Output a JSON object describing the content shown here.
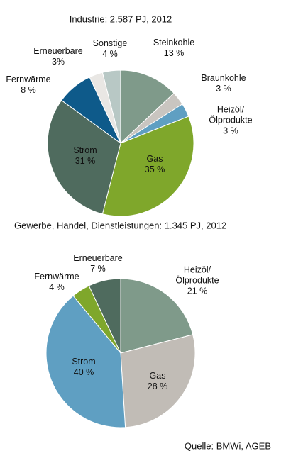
{
  "chart_data": [
    {
      "type": "pie",
      "title": "Industrie: 2.587 PJ, 2012",
      "categories": [
        "Steinkohle",
        "Braunkohle",
        "Heizöl/\nÖlprodukte",
        "Gas",
        "Strom",
        "Fernwärme",
        "Erneuerbare",
        "Sonstige"
      ],
      "values": [
        13,
        3,
        3,
        35,
        31,
        8,
        3,
        4
      ],
      "value_labels": [
        "13 %",
        "3 %",
        "3 %",
        "35 %",
        "31 %",
        "8 %",
        "3%",
        "4 %"
      ],
      "colors": [
        "#7f9a8a",
        "#c9c5c0",
        "#5f9fc2",
        "#7fa72b",
        "#4f6b5e",
        "#0e5a8a",
        "#e9e7e4",
        "#b8c8c5"
      ]
    },
    {
      "type": "pie",
      "title": "Gewerbe, Handel, Dienstleistungen: 1.345 PJ, 2012",
      "categories": [
        "Heizöl/\nÖlprodukte",
        "Gas",
        "Strom",
        "Fernwärme",
        "Erneuerbare"
      ],
      "values": [
        21,
        28,
        40,
        4,
        7
      ],
      "value_labels": [
        "21 %",
        "28 %",
        "40 %",
        "4 %",
        "7 %"
      ],
      "colors": [
        "#7f9a8a",
        "#c1bcb6",
        "#5f9fc2",
        "#7fa72b",
        "#4f6b5e"
      ]
    }
  ],
  "source": "Quelle: BMWi, AGEB"
}
